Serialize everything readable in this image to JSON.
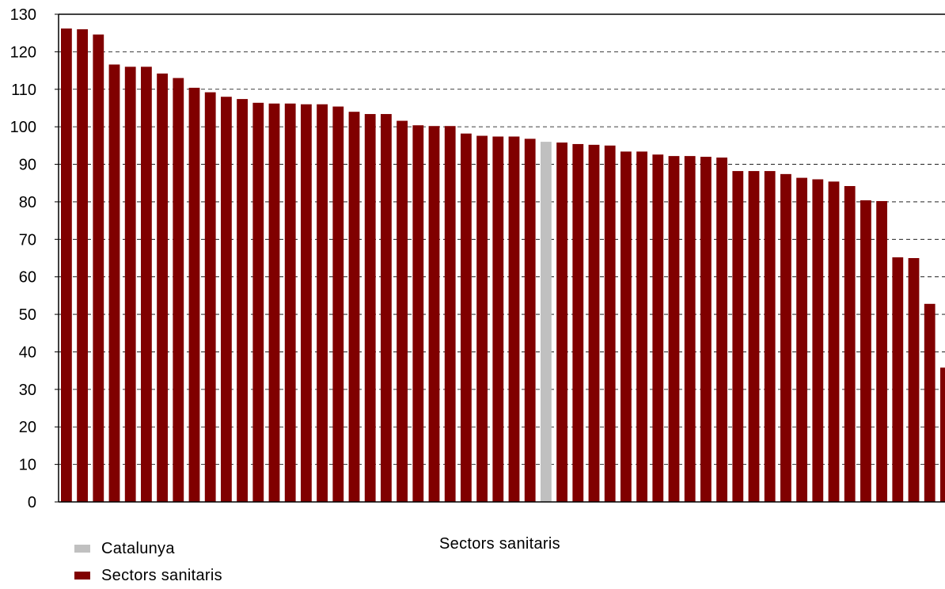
{
  "chart_data": {
    "type": "bar",
    "title": "",
    "xlabel": "Sectors sanitaris",
    "ylabel": "",
    "ylim": [
      0,
      130
    ],
    "yticks": [
      0,
      10,
      20,
      30,
      40,
      50,
      60,
      70,
      80,
      90,
      100,
      110,
      120,
      130
    ],
    "grid": true,
    "legend_position": "bottom-left",
    "highlight_index": 30,
    "colors": {
      "Sectors sanitaris": "#800000",
      "Catalunya": "#C0C0C0"
    },
    "series": [
      {
        "name": "Sectors sanitaris",
        "values": [
          126.2,
          126.0,
          124.6,
          116.6,
          116.0,
          116.0,
          114.2,
          113.0,
          110.4,
          109.2,
          108.0,
          107.4,
          106.4,
          106.2,
          106.2,
          106.0,
          106.0,
          105.4,
          104.0,
          103.4,
          103.4,
          101.6,
          100.4,
          100.2,
          100.2,
          98.2,
          97.6,
          97.4,
          97.4,
          96.8,
          96.0,
          95.8,
          95.4,
          95.2,
          95.0,
          93.4,
          93.4,
          92.6,
          92.2,
          92.2,
          92.0,
          91.8,
          88.2,
          88.2,
          88.2,
          87.4,
          86.4,
          86.0,
          85.4,
          84.2,
          80.4,
          80.2,
          65.2,
          65.0,
          52.8,
          35.8
        ]
      }
    ]
  },
  "legend": {
    "items": [
      {
        "label": "Catalunya",
        "color": "#C0C0C0"
      },
      {
        "label": "Sectors sanitaris",
        "color": "#800000"
      }
    ]
  }
}
